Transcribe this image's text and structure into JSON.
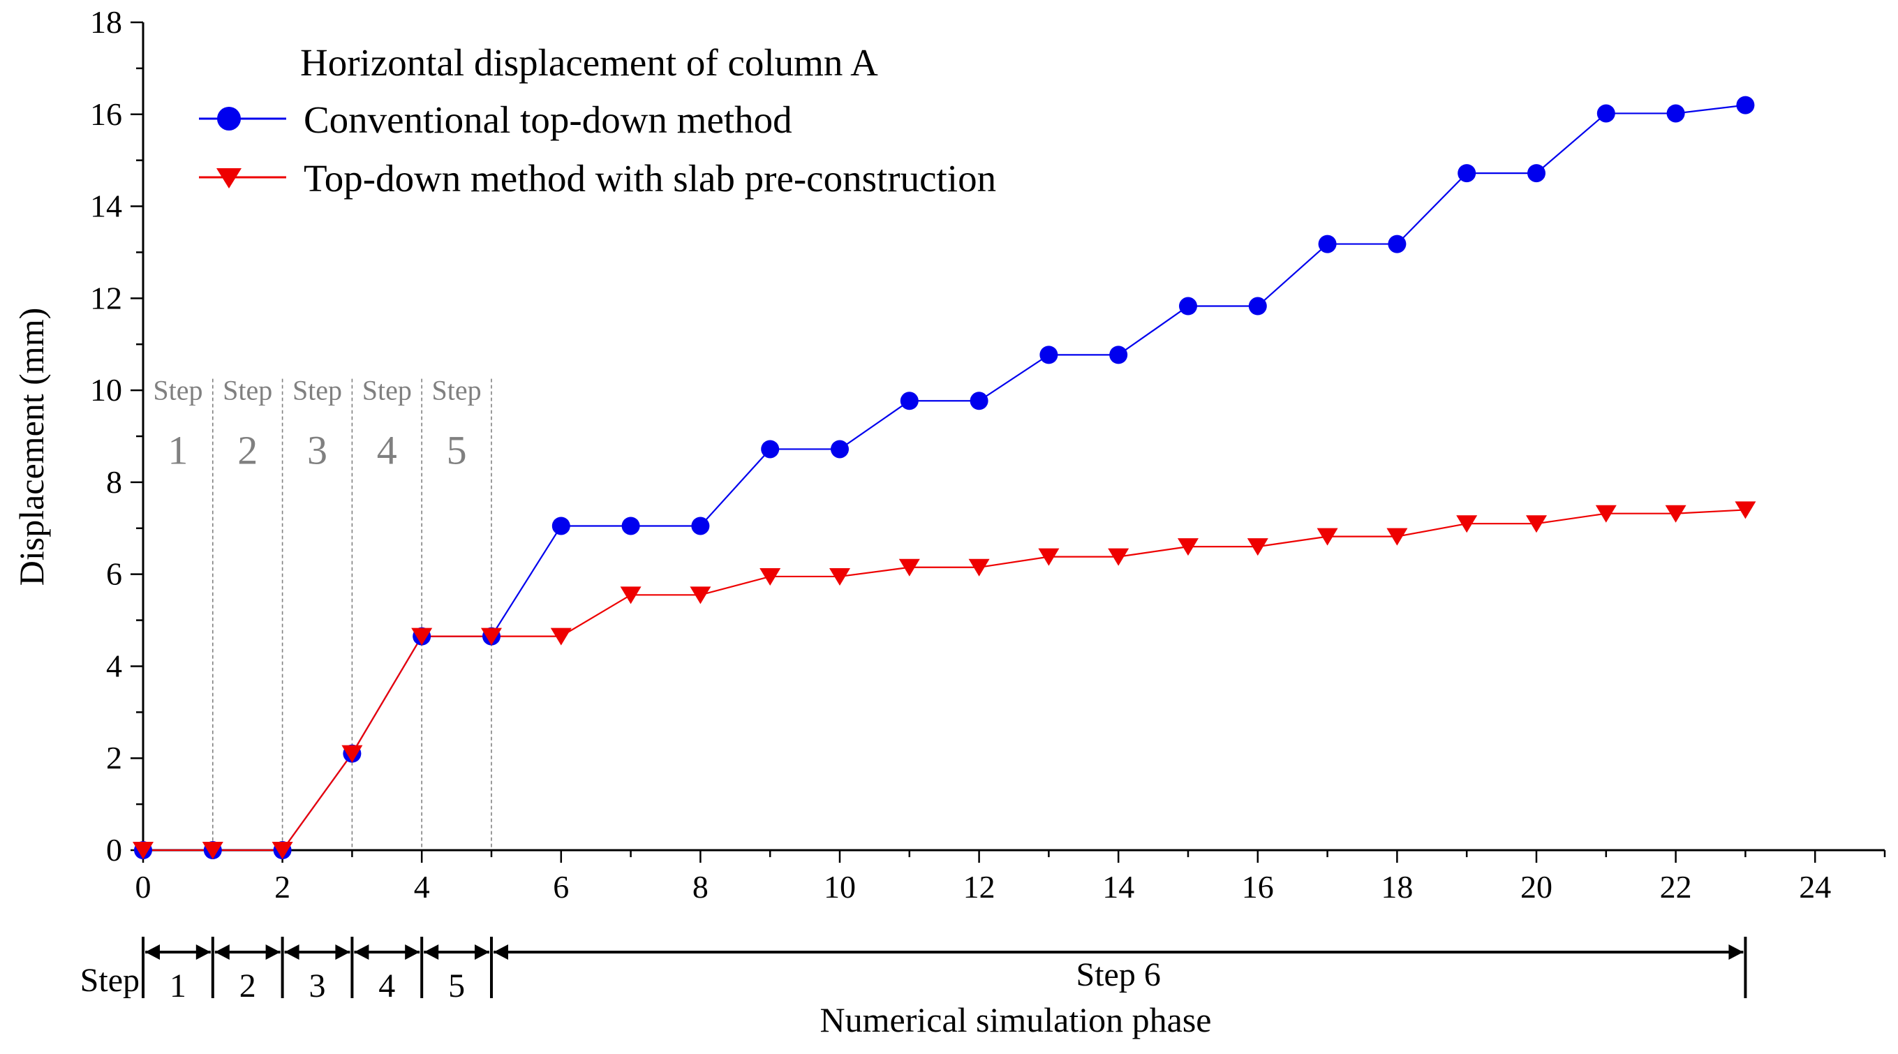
{
  "chart_data": {
    "type": "line",
    "title": "Horizontal displacement of column A",
    "xlabel": "Numerical simulation phase",
    "ylabel": "Displacement (mm)",
    "xlim": [
      0,
      25
    ],
    "ylim": [
      0,
      18
    ],
    "grid": false,
    "legend_position": "top-left",
    "x_ticks": [
      0,
      2,
      4,
      6,
      8,
      10,
      12,
      14,
      16,
      18,
      20,
      22,
      24
    ],
    "x_minor_ticks": [
      1,
      3,
      5,
      7,
      9,
      11,
      13,
      15,
      17,
      19,
      21,
      23,
      25
    ],
    "y_ticks": [
      0,
      2,
      4,
      6,
      8,
      10,
      12,
      14,
      16,
      18
    ],
    "x_tick_labels": [
      "0",
      "2",
      "4",
      "6",
      "8",
      "10",
      "12",
      "14",
      "16",
      "18",
      "20",
      "22",
      "24"
    ],
    "y_tick_labels": [
      "0",
      "2",
      "4",
      "6",
      "8",
      "10",
      "12",
      "14",
      "16",
      "18"
    ],
    "x": [
      0,
      1,
      2,
      3,
      4,
      5,
      6,
      7,
      8,
      9,
      10,
      11,
      12,
      13,
      14,
      15,
      16,
      17,
      18,
      19,
      20,
      21,
      22,
      23
    ],
    "series": [
      {
        "name": "Conventional top-down method",
        "color": "#0000ee",
        "marker": "circle",
        "values": [
          0,
          0,
          0,
          2.1,
          4.65,
          4.65,
          7.05,
          7.05,
          7.05,
          8.72,
          8.72,
          9.77,
          9.77,
          10.77,
          10.77,
          11.83,
          11.83,
          13.18,
          13.18,
          14.72,
          14.72,
          16.02,
          16.02,
          16.2
        ]
      },
      {
        "name": "Top-down method with slab pre-construction",
        "color": "#ee0000",
        "marker": "triangle-down",
        "values": [
          0,
          0,
          0,
          2.1,
          4.65,
          4.65,
          4.65,
          5.55,
          5.55,
          5.95,
          5.95,
          6.15,
          6.15,
          6.38,
          6.38,
          6.6,
          6.6,
          6.82,
          6.82,
          7.1,
          7.1,
          7.32,
          7.32,
          7.4
        ]
      }
    ],
    "step_regions": [
      {
        "word": "Step",
        "number": "1",
        "start": 0,
        "end": 1
      },
      {
        "word": "Step",
        "number": "2",
        "start": 1,
        "end": 2
      },
      {
        "word": "Step",
        "number": "3",
        "start": 2,
        "end": 3
      },
      {
        "word": "Step",
        "number": "4",
        "start": 3,
        "end": 4
      },
      {
        "word": "Step",
        "number": "5",
        "start": 4,
        "end": 5
      }
    ],
    "step_brackets": {
      "label": "Step",
      "items": [
        {
          "text": "1",
          "start": 0,
          "end": 1
        },
        {
          "text": "2",
          "start": 1,
          "end": 2
        },
        {
          "text": "3",
          "start": 2,
          "end": 3
        },
        {
          "text": "4",
          "start": 3,
          "end": 4
        },
        {
          "text": "5",
          "start": 4,
          "end": 5
        },
        {
          "text": "Step 6",
          "start": 5,
          "end": 23
        }
      ]
    }
  }
}
